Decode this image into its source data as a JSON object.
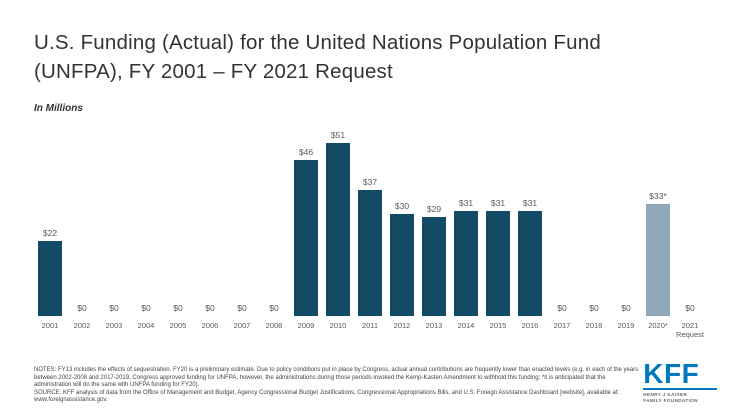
{
  "header": {
    "title_line1": "U.S. Funding (Actual) for the United Nations Population Fund",
    "title_line2": "(UNFPA), FY 2001 – FY 2021 Request",
    "subtitle": "In Millions"
  },
  "chart_data": {
    "type": "bar",
    "title": "U.S. Funding (Actual) for the United Nations Population Fund (UNFPA), FY 2001 – FY 2021 Request",
    "ylabel": "In Millions",
    "categories": [
      "2001",
      "2002",
      "2003",
      "2004",
      "2005",
      "2006",
      "2007",
      "2008",
      "2009",
      "2010",
      "2011",
      "2012",
      "2013",
      "2014",
      "2015",
      "2016",
      "2017",
      "2018",
      "2019",
      "2020*",
      "2021\nRequest"
    ],
    "values": [
      22,
      0,
      0,
      0,
      0,
      0,
      0,
      0,
      46,
      51,
      37,
      30,
      29,
      31,
      31,
      31,
      0,
      0,
      0,
      33,
      0
    ],
    "value_labels": [
      "$22",
      "$0",
      "$0",
      "$0",
      "$0",
      "$0",
      "$0",
      "$0",
      "$46",
      "$51",
      "$37",
      "$30",
      "$29",
      "$31",
      "$31",
      "$31",
      "$0",
      "$0",
      "$0",
      "$33*",
      "$0"
    ],
    "ylim": [
      0,
      55
    ],
    "grid": false,
    "legend": "none",
    "bar_color": "#134b66",
    "highlight_color": "#8fa8ba",
    "highlight_index": 19
  },
  "footer": {
    "notes": "NOTES: FY13 includes the effects of sequestration. FY20 is a preliminary estimate. Due to policy conditions put in place by Congress, actual annual contributions are frequently lower than enacted levels (e.g. in each of the years between 2002-2008 and 2017-2019, Congress approved funding for UNFPA, however, the administrations during those periods invoked the Kemp-Kasten Amendment to withhold this funding; *it is anticipated that the administration will do the same with UNFPA funding for FY20).",
    "source": "SOURCE: KFF analysis of data from the Office of Management and Budget, Agency Congressional Budget Justifications, Congressional Appropriations Bills, and U.S. Foreign Assistance Dashboard [website], available at: www.foreignassistance.gov.",
    "logo": {
      "text": "KFF",
      "subtext_line1": "HENRY J KAISER",
      "subtext_line2": "FAMILY FOUNDATION",
      "color": "#0079c1"
    }
  }
}
